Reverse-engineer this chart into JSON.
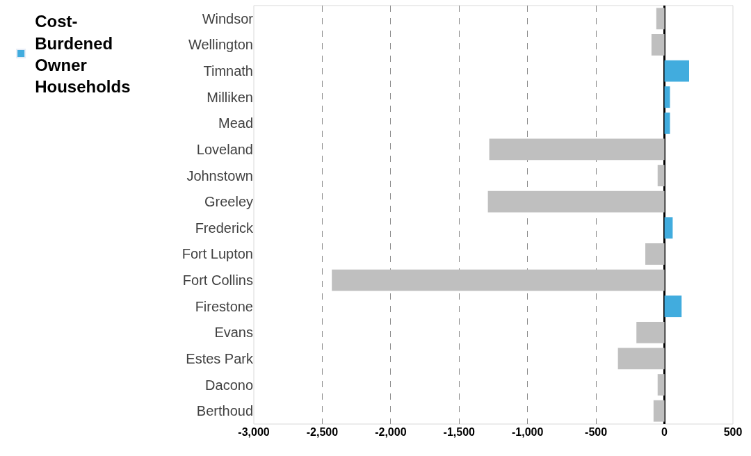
{
  "chart_data": {
    "type": "bar",
    "orientation": "horizontal",
    "categories": [
      "Windsor",
      "Wellington",
      "Timnath",
      "Milliken",
      "Mead",
      "Loveland",
      "Johnstown",
      "Greeley",
      "Frederick",
      "Fort Lupton",
      "Fort Collins",
      "Firestone",
      "Evans",
      "Estes Park",
      "Dacono",
      "Berthoud"
    ],
    "series": [
      {
        "name": "Cost-Burdened Owner Households",
        "color": "#41acde",
        "values": [
          -60,
          -95,
          180,
          40,
          40,
          -1280,
          -50,
          -1290,
          60,
          -140,
          -2430,
          125,
          -205,
          -340,
          -50,
          -80
        ],
        "colors": [
          "#bfbfbf",
          "#bfbfbf",
          "#41acde",
          "#41acde",
          "#41acde",
          "#bfbfbf",
          "#bfbfbf",
          "#bfbfbf",
          "#41acde",
          "#bfbfbf",
          "#bfbfbf",
          "#41acde",
          "#bfbfbf",
          "#bfbfbf",
          "#bfbfbf",
          "#bfbfbf"
        ]
      }
    ],
    "xlim": [
      -3000,
      500
    ],
    "xticks": [
      {
        "value": -3000,
        "label": "-3,000"
      },
      {
        "value": -2500,
        "label": "-2,500"
      },
      {
        "value": -2000,
        "label": "-2,000"
      },
      {
        "value": -1500,
        "label": "-1,500"
      },
      {
        "value": -1000,
        "label": "-1,000"
      },
      {
        "value": -500,
        "label": "-500"
      },
      0,
      500
    ],
    "grid": "x",
    "legend": "top left"
  }
}
